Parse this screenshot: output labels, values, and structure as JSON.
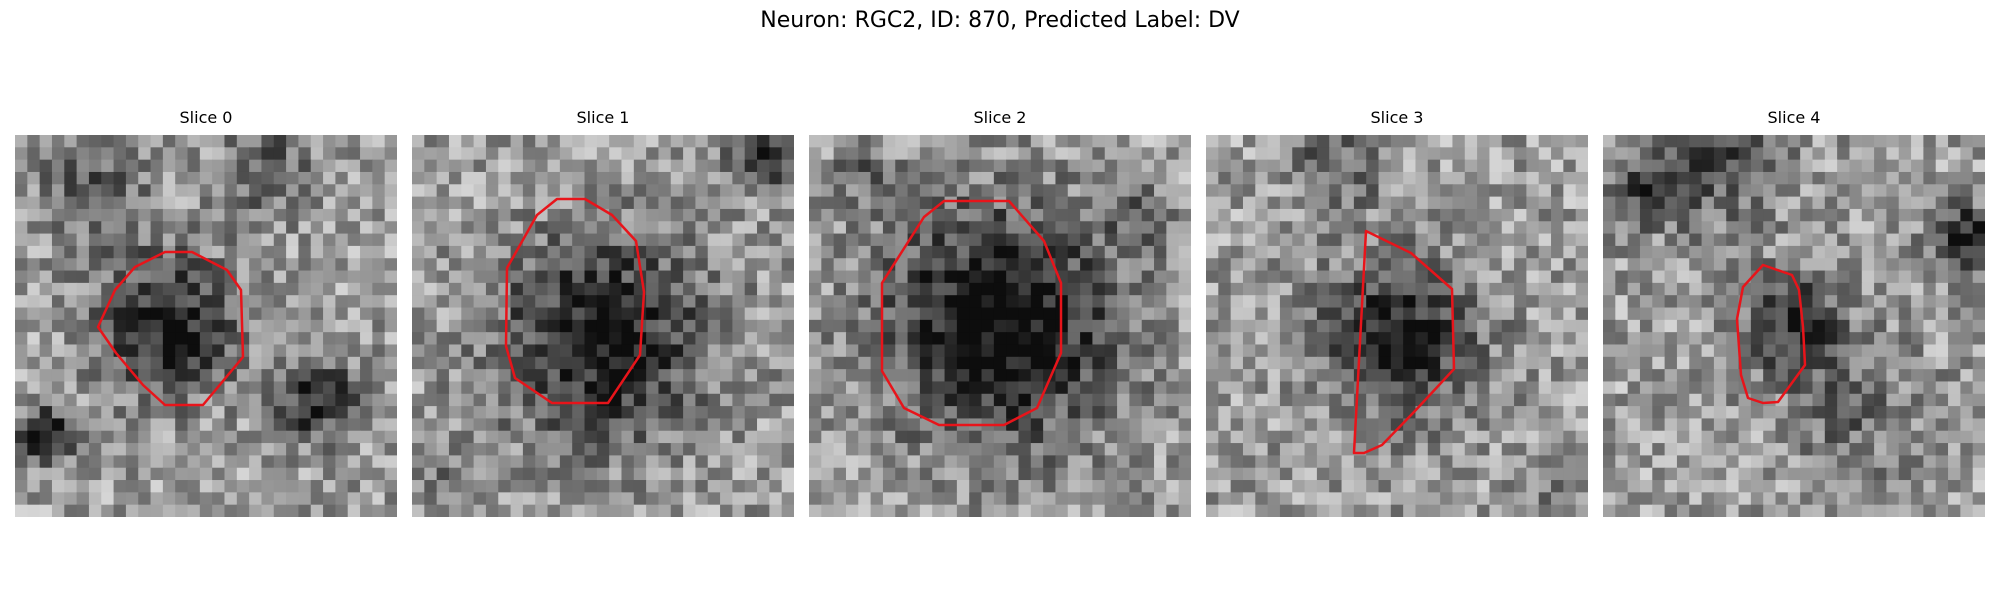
{
  "title": "Neuron: RGC2, ID: 870, Predicted Label: DV",
  "outline_color": "#e8141a",
  "panels": [
    {
      "label": "Slice 0"
    },
    {
      "label": "Slice 1"
    },
    {
      "label": "Slice 2"
    },
    {
      "label": "Slice 3"
    },
    {
      "label": "Slice 4"
    }
  ]
}
